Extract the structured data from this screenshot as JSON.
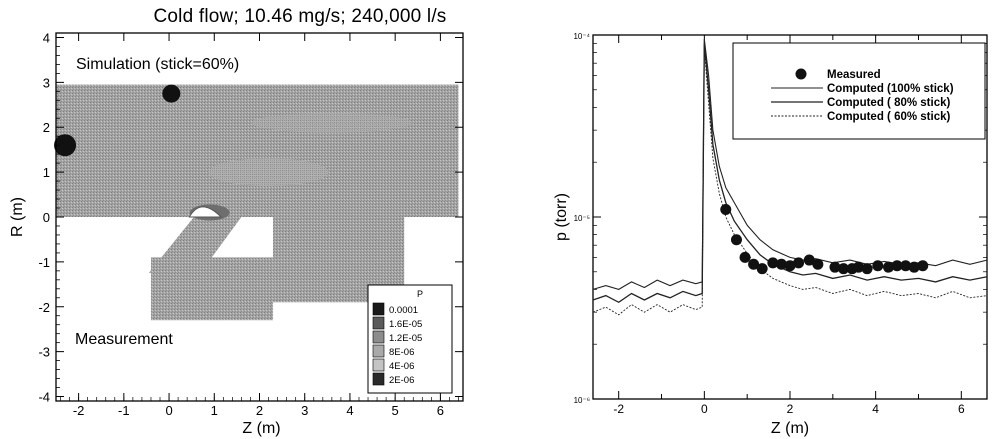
{
  "chart_data": [
    {
      "type": "heatmap",
      "title": "Cold flow; 10.46 mg/s; 240,000 l/s",
      "xlabel": "Z (m)",
      "ylabel": "R (m)",
      "xlim": [
        -2.5,
        6.5
      ],
      "ylim": [
        -4.1,
        4.1
      ],
      "xticks": [
        "-2",
        "-1",
        "0",
        "1",
        "2",
        "3",
        "4",
        "5",
        "6"
      ],
      "yticks": [
        "-4",
        "-3",
        "-2",
        "-1",
        "0",
        "1",
        "2",
        "3",
        "4"
      ],
      "annotations": [
        "Simulation (stick=60%)",
        "Measurement"
      ],
      "legend": {
        "title": "P",
        "entries": [
          "0.0001",
          "1.6E-05",
          "1.2E-05",
          "8E-06",
          "4E-06",
          "2E-06"
        ],
        "colors": [
          "#1a1a1a",
          "#5a5a5a",
          "#8c8c8c",
          "#a9a9a9",
          "#c4c4c4",
          "#2b2b2b"
        ],
        "placement": "bottom-right"
      },
      "regions": [
        {
          "name": "upper",
          "z": [
            -2.5,
            6.4
          ],
          "r": [
            0.0,
            2.95
          ]
        },
        {
          "name": "lower-right",
          "z": [
            2.3,
            5.2
          ],
          "r": [
            -1.9,
            0.0
          ]
        },
        {
          "name": "lower-left",
          "z": [
            -0.4,
            2.3
          ],
          "r": [
            -2.3,
            -0.9
          ]
        }
      ]
    },
    {
      "type": "line",
      "xlabel": "Z (m)",
      "ylabel": "p (torr)",
      "yscale": "log",
      "xlim": [
        -2.6,
        6.6
      ],
      "ylim": [
        1e-06,
        0.0001
      ],
      "xticks": [
        "-2",
        "0",
        "2",
        "4",
        "6"
      ],
      "yticks": [
        "10⁻⁴",
        "10⁻⁵",
        "10⁻⁶"
      ],
      "legend_placement": "top-right",
      "series": [
        {
          "name": "Measured",
          "kind": "scatter",
          "x": [
            0.5,
            0.75,
            0.95,
            1.15,
            1.35,
            1.6,
            1.8,
            2.0,
            2.2,
            2.45,
            2.65,
            3.05,
            3.25,
            3.45,
            3.6,
            3.8,
            4.05,
            4.3,
            4.5,
            4.7,
            4.9,
            5.1
          ],
          "y": [
            1.1e-05,
            7.5e-06,
            6e-06,
            5.5e-06,
            5.2e-06,
            5.6e-06,
            5.5e-06,
            5.4e-06,
            5.6e-06,
            5.8e-06,
            5.5e-06,
            5.3e-06,
            5.2e-06,
            5.2e-06,
            5.3e-06,
            5.2e-06,
            5.4e-06,
            5.3e-06,
            5.4e-06,
            5.4e-06,
            5.3e-06,
            5.4e-06
          ]
        },
        {
          "name": "Computed (100% stick)",
          "kind": "line",
          "x": [
            -2.6,
            -2.3,
            -2.0,
            -1.7,
            -1.4,
            -1.1,
            -0.8,
            -0.5,
            -0.2,
            -0.05,
            0.0,
            0.1,
            0.2,
            0.35,
            0.5,
            0.7,
            1.0,
            1.3,
            1.6,
            2.0,
            2.3,
            2.6,
            3.0,
            3.4,
            3.8,
            4.2,
            4.6,
            5.0,
            5.4,
            5.8,
            6.2,
            6.6
          ],
          "y": [
            4e-06,
            4.2e-06,
            4e-06,
            4.4e-06,
            4.1e-06,
            4.5e-06,
            4.2e-06,
            4.5e-06,
            4.3e-06,
            4.4e-06,
            9.5e-05,
            6e-05,
            3e-05,
            1.9e-05,
            1.45e-05,
            1.2e-05,
            9e-06,
            7.5e-06,
            6.6e-06,
            6e-06,
            5.8e-06,
            5.9e-06,
            5.6e-06,
            5.8e-06,
            5.5e-06,
            5.7e-06,
            5.5e-06,
            5.6e-06,
            5.4e-06,
            5.8e-06,
            5.5e-06,
            5.8e-06
          ]
        },
        {
          "name": "Computed ( 80% stick)",
          "kind": "line",
          "x": [
            -2.6,
            -2.3,
            -2.0,
            -1.7,
            -1.4,
            -1.1,
            -0.8,
            -0.5,
            -0.2,
            -0.05,
            0.0,
            0.1,
            0.2,
            0.35,
            0.5,
            0.7,
            1.0,
            1.3,
            1.6,
            2.0,
            2.3,
            2.6,
            3.0,
            3.4,
            3.8,
            4.2,
            4.6,
            5.0,
            5.4,
            5.8,
            6.2,
            6.6
          ],
          "y": [
            3.5e-06,
            3.7e-06,
            3.4e-06,
            3.8e-06,
            3.5e-06,
            3.8e-06,
            3.6e-06,
            3.9e-06,
            3.7e-06,
            3.8e-06,
            9e-05,
            5e-05,
            2.5e-05,
            1.6e-05,
            1.2e-05,
            9.5e-06,
            7.5e-06,
            6.2e-06,
            5.5e-06,
            5e-06,
            4.8e-06,
            4.9e-06,
            4.6e-06,
            4.8e-06,
            4.5e-06,
            4.7e-06,
            4.5e-06,
            4.6e-06,
            4.4e-06,
            4.7e-06,
            4.5e-06,
            4.7e-06
          ]
        },
        {
          "name": "Computed ( 60% stick)",
          "kind": "line",
          "x": [
            -2.6,
            -2.3,
            -2.0,
            -1.7,
            -1.4,
            -1.1,
            -0.8,
            -0.5,
            -0.2,
            -0.05,
            0.0,
            0.1,
            0.2,
            0.35,
            0.5,
            0.7,
            1.0,
            1.3,
            1.6,
            2.0,
            2.3,
            2.6,
            3.0,
            3.4,
            3.8,
            4.2,
            4.6,
            5.0,
            5.4,
            5.8,
            6.2,
            6.6
          ],
          "y": [
            3e-06,
            3.2e-06,
            2.9e-06,
            3.3e-06,
            3e-06,
            3.3e-06,
            3e-06,
            3.3e-06,
            3.1e-06,
            3.2e-06,
            8.5e-05,
            4.2e-05,
            2.1e-05,
            1.35e-05,
            1e-05,
            8e-06,
            6.3e-06,
            5.2e-06,
            4.6e-06,
            4.2e-06,
            4e-06,
            4.1e-06,
            3.8e-06,
            4e-06,
            3.7e-06,
            3.9e-06,
            3.7e-06,
            3.8e-06,
            3.6e-06,
            3.9e-06,
            3.6e-06,
            3.7e-06
          ]
        }
      ]
    }
  ]
}
